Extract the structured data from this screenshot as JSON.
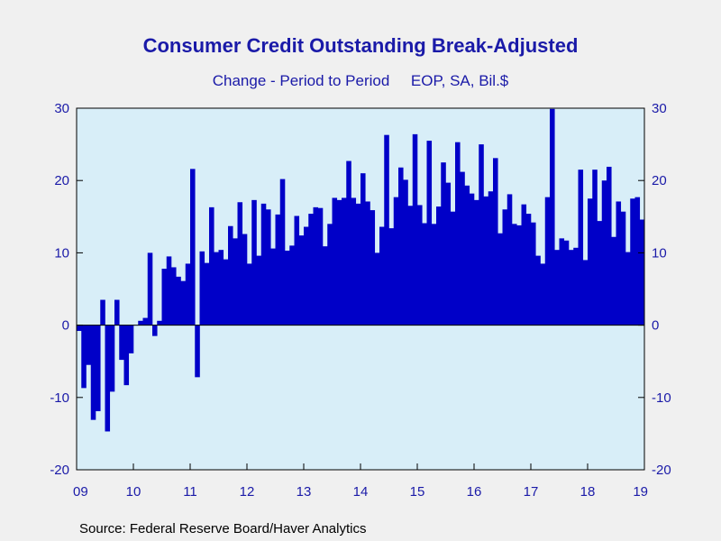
{
  "chart_data": {
    "type": "bar",
    "title": "Consumer Credit Outstanding Break-Adjusted",
    "subtitle": "Change - Period to Period     EOP, SA, Bil.$",
    "source": "Source:  Federal Reserve Board/Haver Analytics",
    "ylim": [
      -20,
      30
    ],
    "yticks": [
      30,
      20,
      10,
      0,
      -10,
      -20
    ],
    "xlim": [
      2009.0,
      2019.0
    ],
    "xticks": [
      "09",
      "10",
      "11",
      "12",
      "13",
      "14",
      "15",
      "16",
      "17",
      "18",
      "19"
    ],
    "x_start": "2009-01",
    "frequency": "monthly",
    "grid": false,
    "colors": {
      "bar": "#0000c8",
      "axis_text": "#1a1aa8",
      "plot_bg": "#d8eef8",
      "page_bg": "#f0f0f0"
    },
    "values": [
      -0.8,
      -8.7,
      -5.5,
      -13.1,
      -11.9,
      3.5,
      -14.7,
      -9.2,
      3.5,
      -4.8,
      -8.3,
      -3.9,
      0.0,
      0.6,
      1.0,
      10.0,
      -1.5,
      0.6,
      7.8,
      9.5,
      8.0,
      6.7,
      6.1,
      8.5,
      21.6,
      -7.2,
      10.2,
      8.6,
      16.3,
      10.1,
      10.4,
      9.1,
      13.7,
      12.0,
      17.0,
      12.6,
      8.5,
      17.3,
      9.6,
      16.8,
      16.0,
      10.6,
      15.3,
      20.2,
      10.3,
      11.0,
      15.1,
      12.4,
      13.6,
      15.4,
      16.3,
      16.2,
      10.9,
      14.0,
      17.6,
      17.3,
      17.6,
      22.7,
      17.6,
      16.8,
      21.0,
      17.1,
      15.9,
      10.0,
      13.6,
      26.3,
      13.4,
      17.7,
      21.8,
      20.1,
      16.5,
      26.4,
      16.6,
      14.1,
      25.5,
      14.0,
      16.4,
      22.5,
      19.7,
      15.7,
      25.3,
      21.2,
      19.3,
      18.2,
      17.3,
      25.0,
      17.8,
      18.5,
      23.1,
      12.7,
      16.0,
      18.1,
      14.0,
      13.8,
      16.7,
      15.4,
      14.2,
      9.6,
      8.5,
      17.7,
      29.9,
      10.4,
      12.0,
      11.7,
      10.4,
      10.7,
      21.5,
      9.0,
      17.5,
      21.5,
      14.4,
      20.0,
      21.9,
      12.2,
      17.1,
      15.7,
      10.1,
      17.5,
      17.7,
      14.6
    ]
  }
}
